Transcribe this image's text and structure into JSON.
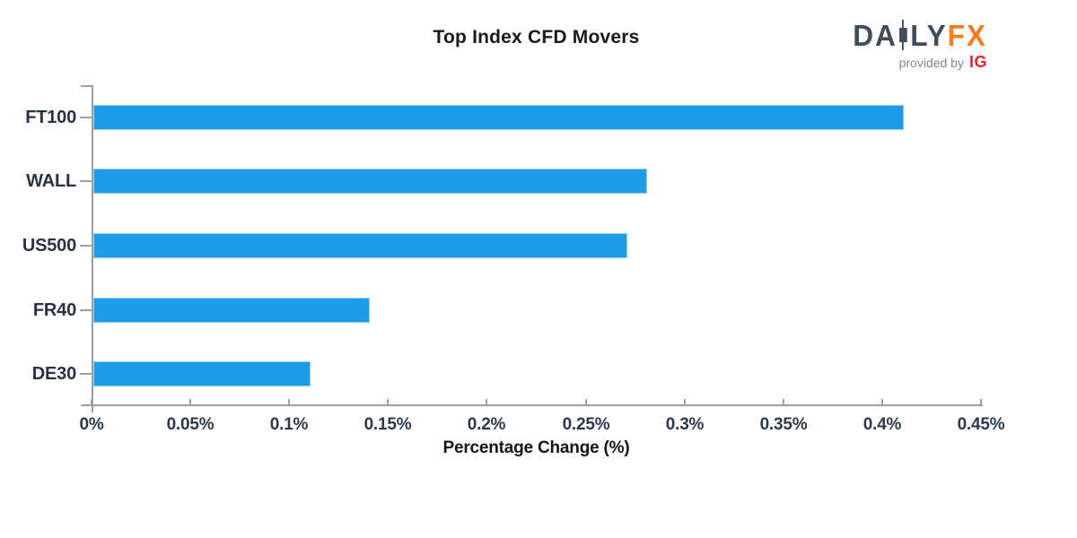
{
  "chart_data": {
    "type": "bar",
    "orientation": "horizontal",
    "title": "Top Index CFD Movers",
    "xlabel": "Percentage Change (%)",
    "categories": [
      "FT100",
      "WALL",
      "US500",
      "FR40",
      "DE30"
    ],
    "values": [
      0.41,
      0.28,
      0.27,
      0.14,
      0.11
    ],
    "value_unit": "%",
    "xlim": [
      0,
      0.45
    ],
    "x_ticks": [
      0,
      0.05,
      0.1,
      0.15,
      0.2,
      0.25,
      0.3,
      0.35,
      0.4,
      0.45
    ],
    "x_tick_labels": [
      "0%",
      "0.05%",
      "0.1%",
      "0.15%",
      "0.2%",
      "0.25%",
      "0.3%",
      "0.35%",
      "0.4%",
      "0.45%"
    ],
    "grid": false,
    "legend_position": "none",
    "bar_color": "#1e9ce8"
  },
  "logo": {
    "part1": "DA",
    "part2": "LY",
    "part3": "FX",
    "candlestick_icon": "candlestick-icon",
    "tagline": "provided by",
    "provider": "IG"
  },
  "colors": {
    "bar": "#1e9ce8",
    "bar_edge": "#8ed1f5",
    "axis": "#9aa0a6",
    "tick_text": "#2c3a4d",
    "category_text": "#263246",
    "title_text": "#1a1a1a",
    "logo_slate": "#424d5c",
    "logo_orange": "#f57d20",
    "logo_gray": "#7e8894",
    "logo_red": "#e32530"
  }
}
